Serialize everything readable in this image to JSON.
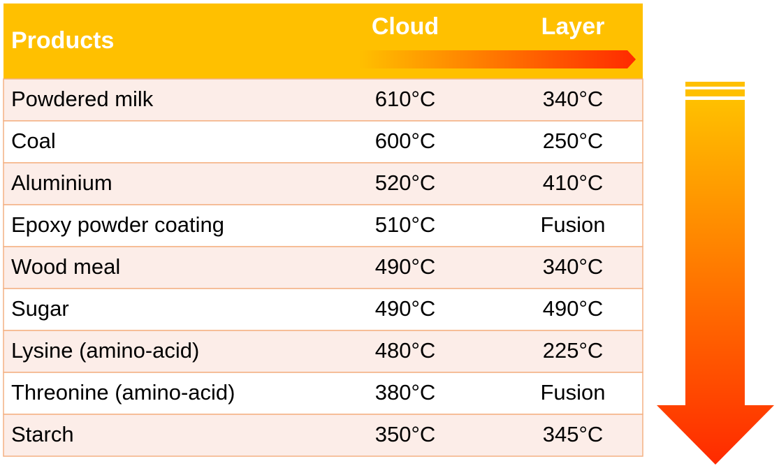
{
  "table": {
    "columns": [
      "Products",
      "Cloud",
      "Layer"
    ],
    "rows": [
      [
        "Powdered milk",
        "610°C",
        "340°C"
      ],
      [
        "Coal",
        "600°C",
        "250°C"
      ],
      [
        "Aluminium",
        "520°C",
        "410°C"
      ],
      [
        "Epoxy powder coating",
        "510°C",
        "Fusion"
      ],
      [
        "Wood meal",
        "490°C",
        "340°C"
      ],
      [
        "Sugar",
        "490°C",
        "490°C"
      ],
      [
        "Lysine (amino-acid)",
        "480°C",
        "225°C"
      ],
      [
        "Threonine (amino-acid)",
        "380°C",
        "Fusion"
      ],
      [
        "Starch",
        "350°C",
        "345°C"
      ]
    ]
  }
}
